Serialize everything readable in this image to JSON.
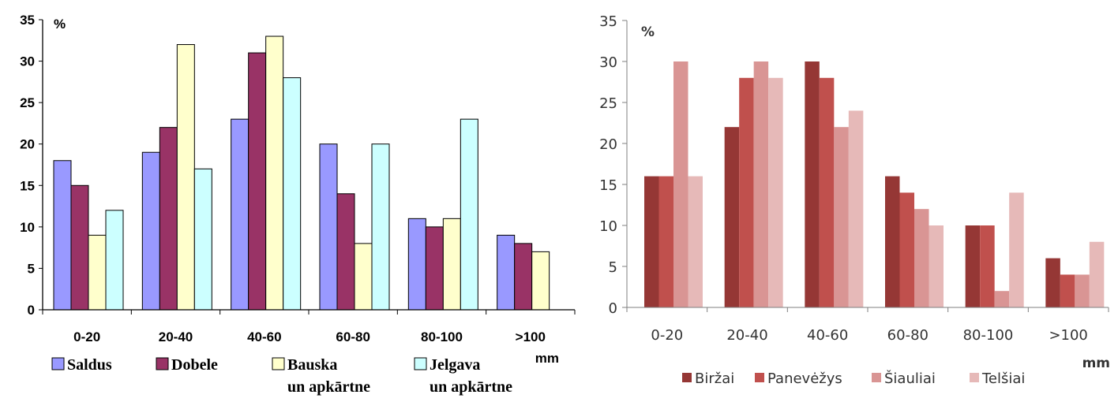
{
  "chart_data": [
    {
      "type": "bar",
      "title": "",
      "ylabel": "%",
      "xlabel": "mm",
      "ylim": [
        0,
        35
      ],
      "yticks": [
        0,
        5,
        10,
        15,
        20,
        25,
        30,
        35
      ],
      "grid": false,
      "legend": "bottom",
      "categories": [
        "0-20",
        "20-40",
        "40-60",
        "60-80",
        "80-100",
        ">100"
      ],
      "series": [
        {
          "name": "Saldus",
          "color": "#9999ff",
          "values": [
            18,
            19,
            23,
            20,
            11,
            9
          ]
        },
        {
          "name": "Dobele",
          "color": "#993366",
          "values": [
            15,
            22,
            31,
            14,
            10,
            8
          ]
        },
        {
          "name": "Bauska un apkārtne",
          "name_lines": [
            "Bauska",
            "un apkārtne"
          ],
          "color": "#ffffcc",
          "values": [
            9,
            32,
            33,
            8,
            11,
            7
          ]
        },
        {
          "name": "Jelgava un apkārtne",
          "name_lines": [
            "Jelgava",
            "un apkārtne"
          ],
          "color": "#ccffff",
          "values": [
            12,
            17,
            28,
            20,
            23,
            null
          ]
        }
      ]
    },
    {
      "type": "bar",
      "title": "",
      "ylabel": "%",
      "xlabel": "mm",
      "ylim": [
        0,
        35
      ],
      "yticks": [
        0,
        5,
        10,
        15,
        20,
        25,
        30,
        35
      ],
      "grid": false,
      "legend": "bottom",
      "categories": [
        "0-20",
        "20-40",
        "40-60",
        "60-80",
        "80-100",
        ">100"
      ],
      "series": [
        {
          "name": "Biržai",
          "color": "#953735",
          "values": [
            16,
            22,
            30,
            16,
            10,
            6
          ]
        },
        {
          "name": "Panevėžys",
          "color": "#c0504d",
          "values": [
            16,
            28,
            28,
            14,
            10,
            4
          ]
        },
        {
          "name": "Šiauliai",
          "color": "#d99594",
          "values": [
            30,
            30,
            22,
            12,
            2,
            4
          ]
        },
        {
          "name": "Telšiai",
          "color": "#e6b9b8",
          "values": [
            16,
            28,
            24,
            10,
            14,
            8
          ]
        }
      ]
    }
  ]
}
